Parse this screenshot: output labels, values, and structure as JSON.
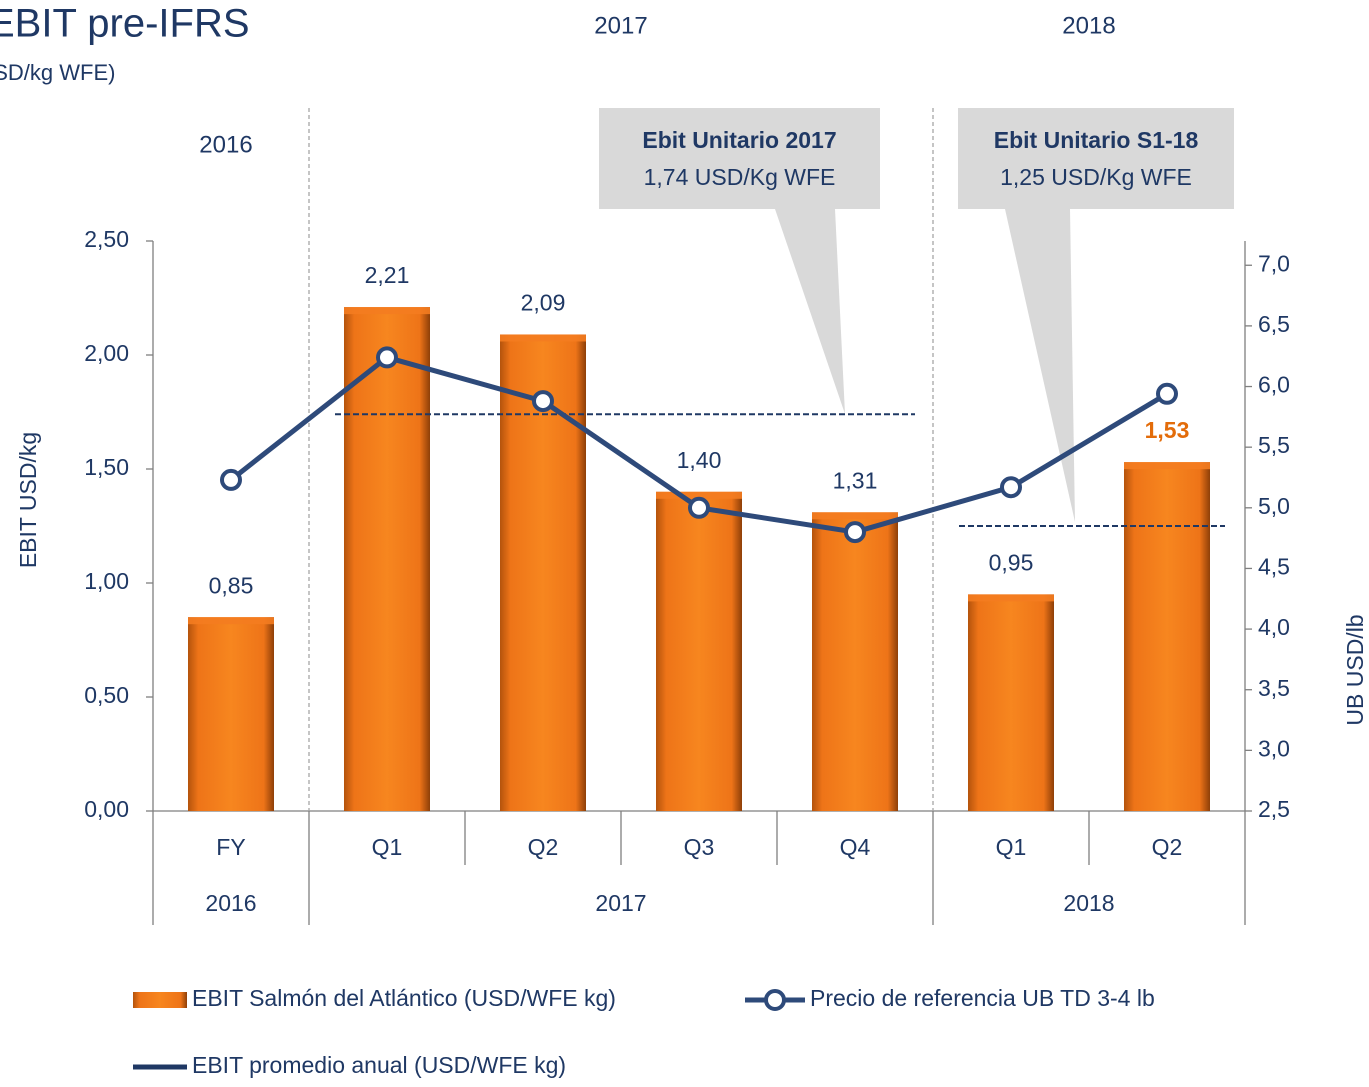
{
  "chart_data": {
    "type": "bar",
    "title": "EBIT pre-IFRS",
    "subtitle": "(USD/kg WFE)",
    "y_label": "EBIT USD/kg",
    "y2_label": "UB USD/lb",
    "groups": [
      {
        "label": "2016",
        "categories": [
          "FY"
        ]
      },
      {
        "label": "2017",
        "categories": [
          "Q1",
          "Q2",
          "Q3",
          "Q4"
        ]
      },
      {
        "label": "2018",
        "categories": [
          "Q1",
          "Q2"
        ]
      }
    ],
    "series": [
      {
        "name": "EBIT Salmón del Atlántico (USD/WFE kg)",
        "type": "bar",
        "color": "#f47c20",
        "values": [
          0.85,
          2.21,
          2.09,
          1.4,
          1.31,
          0.95,
          1.53
        ],
        "value_labels": [
          "0,85",
          "2,21",
          "2,09",
          "1,40",
          "1,31",
          "0,95",
          "1,53"
        ]
      },
      {
        "name": "Precio de referencia UB TD 3-4 lb",
        "type": "line",
        "axis": "y2",
        "color": "#2e4a7a",
        "values": [
          5.23,
          6.24,
          5.88,
          5.0,
          4.8,
          5.17,
          5.94
        ]
      },
      {
        "name": "EBIT promedio anual (USD/WFE kg)",
        "type": "dashed",
        "color": "#1f3864",
        "values": [
          null,
          1.74,
          1.74,
          1.74,
          1.74,
          1.25,
          1.25
        ]
      }
    ],
    "callouts": [
      {
        "title": "Ebit Unitario 2017",
        "text": "1,74 USD/Kg WFE"
      },
      {
        "title": "Ebit Unitario S1-18",
        "text": "1,25 USD/Kg WFE"
      }
    ],
    "ylim": [
      0,
      2.5
    ],
    "yticks": [
      {
        "value": 0,
        "label": "0,00"
      },
      {
        "value": 0.5,
        "label": "0,50"
      },
      {
        "value": 1,
        "label": "1,00"
      },
      {
        "value": 1.5,
        "label": "1,50"
      },
      {
        "value": 2,
        "label": "2,00"
      },
      {
        "value": 2.5,
        "label": "2,50"
      }
    ],
    "y2lim": [
      2.5,
      7.2
    ],
    "y2ticks": [
      {
        "value": 2.5,
        "label": "2,5"
      },
      {
        "value": 3,
        "label": "3,0"
      },
      {
        "value": 3.5,
        "label": "3,5"
      },
      {
        "value": 4,
        "label": "4,0"
      },
      {
        "value": 4.5,
        "label": "4,5"
      },
      {
        "value": 5,
        "label": "5,0"
      },
      {
        "value": 5.5,
        "label": "5,5"
      },
      {
        "value": 6,
        "label": "6,0"
      },
      {
        "value": 6.5,
        "label": "6,5"
      },
      {
        "value": 7,
        "label": "7,0"
      }
    ],
    "highlight_color": "#e36c0a"
  }
}
